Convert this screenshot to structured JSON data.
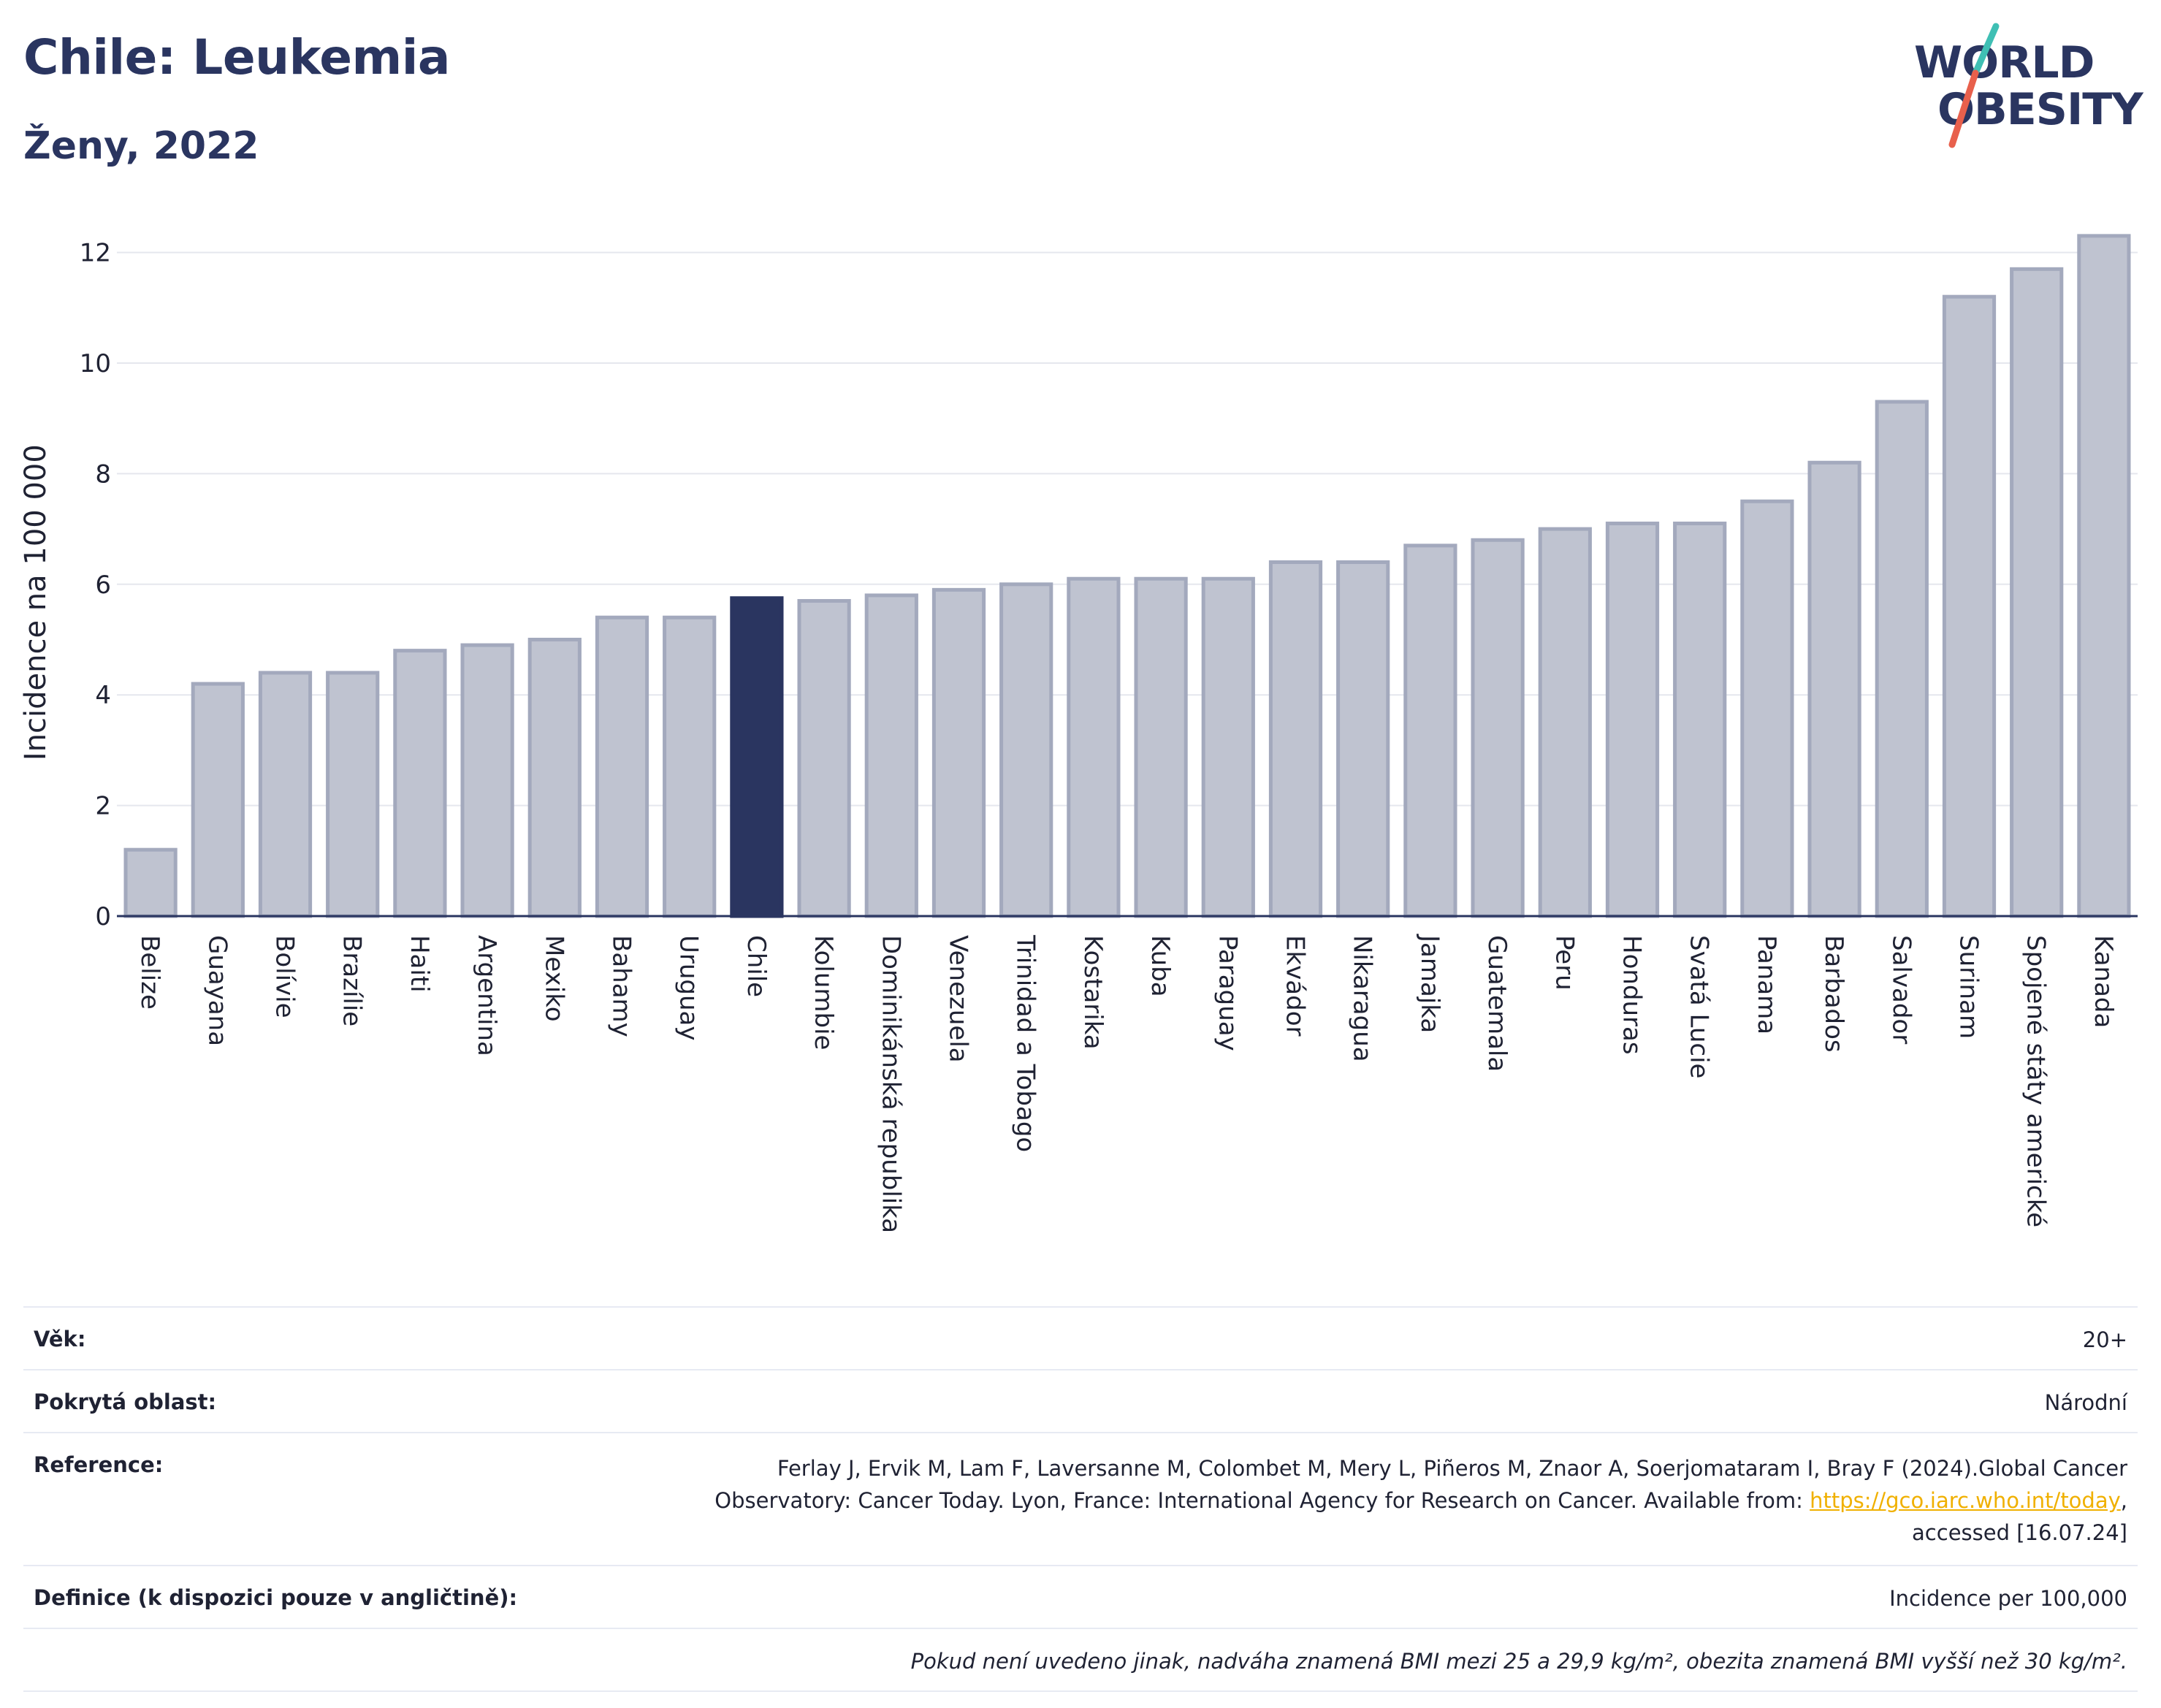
{
  "header": {
    "title": "Chile: Leukemia",
    "subtitle": "Ženy, 2022"
  },
  "logo": {
    "line1": "WORLD",
    "line2": "OBESITY",
    "slash_colors": [
      "#3fbfb4",
      "#e8604c"
    ]
  },
  "colors": {
    "primary": "#2a3560",
    "bar_fill": "#bfc3d0",
    "bar_stroke": "#a3a9bd",
    "highlight": "#2a3560",
    "grid": "#e5e7ee",
    "link": "#f0b000"
  },
  "chart_data": {
    "type": "bar",
    "title": "Chile: Leukemia",
    "subtitle": "Ženy, 2022",
    "xlabel": "",
    "ylabel": "Incidence na 100 000",
    "ylim": [
      0,
      12.4
    ],
    "yticks": [
      0,
      2,
      4,
      6,
      8,
      10,
      12
    ],
    "grid": true,
    "highlight": "Chile",
    "categories": [
      "Belize",
      "Guayana",
      "Bolívie",
      "Brazílie",
      "Haiti",
      "Argentina",
      "Mexiko",
      "Bahamy",
      "Uruguay",
      "Chile",
      "Kolumbie",
      "Dominikánská republika",
      "Venezuela",
      "Trinidad a Tobago",
      "Kostarika",
      "Kuba",
      "Paraguay",
      "Ekvádor",
      "Nikaragua",
      "Jamajka",
      "Guatemala",
      "Peru",
      "Honduras",
      "Svatá Lucie",
      "Panama",
      "Barbados",
      "Salvador",
      "Surinam",
      "Spojené státy americké",
      "Kanada"
    ],
    "values": [
      1.2,
      4.2,
      4.4,
      4.4,
      4.8,
      4.9,
      5.0,
      5.4,
      5.4,
      5.75,
      5.7,
      5.8,
      5.9,
      6.0,
      6.1,
      6.1,
      6.1,
      6.4,
      6.4,
      6.7,
      6.8,
      7.0,
      7.1,
      7.1,
      7.5,
      8.2,
      9.3,
      11.2,
      11.7,
      12.3
    ]
  },
  "info": {
    "age_label": "Věk:",
    "age_value": "20+",
    "coverage_label": "Pokrytá oblast:",
    "coverage_value": "Národní",
    "reference_label": "Reference:",
    "reference_line1": "Ferlay J, Ervik M, Lam F, Laversanne M, Colombet M, Mery L, Piñeros M, Znaor A, Soerjomataram I, Bray F (2024).Global Cancer",
    "reference_line2_pre": "Observatory: Cancer Today. Lyon, France: International Agency for Research on Cancer. Available from: ",
    "reference_link": "https://gco.iarc.who.int/today",
    "reference_line2_post": ",",
    "reference_line3": "accessed [16.07.24]",
    "definition_label": "Definice (k dispozici pouze v angličtině):",
    "definition_value": "Incidence per 100,000",
    "note": "Pokud není uvedeno jinak, nadváha znamená BMI mezi 25 a 29,9 kg/m², obezita znamená BMI vyšší než 30 kg/m²."
  }
}
